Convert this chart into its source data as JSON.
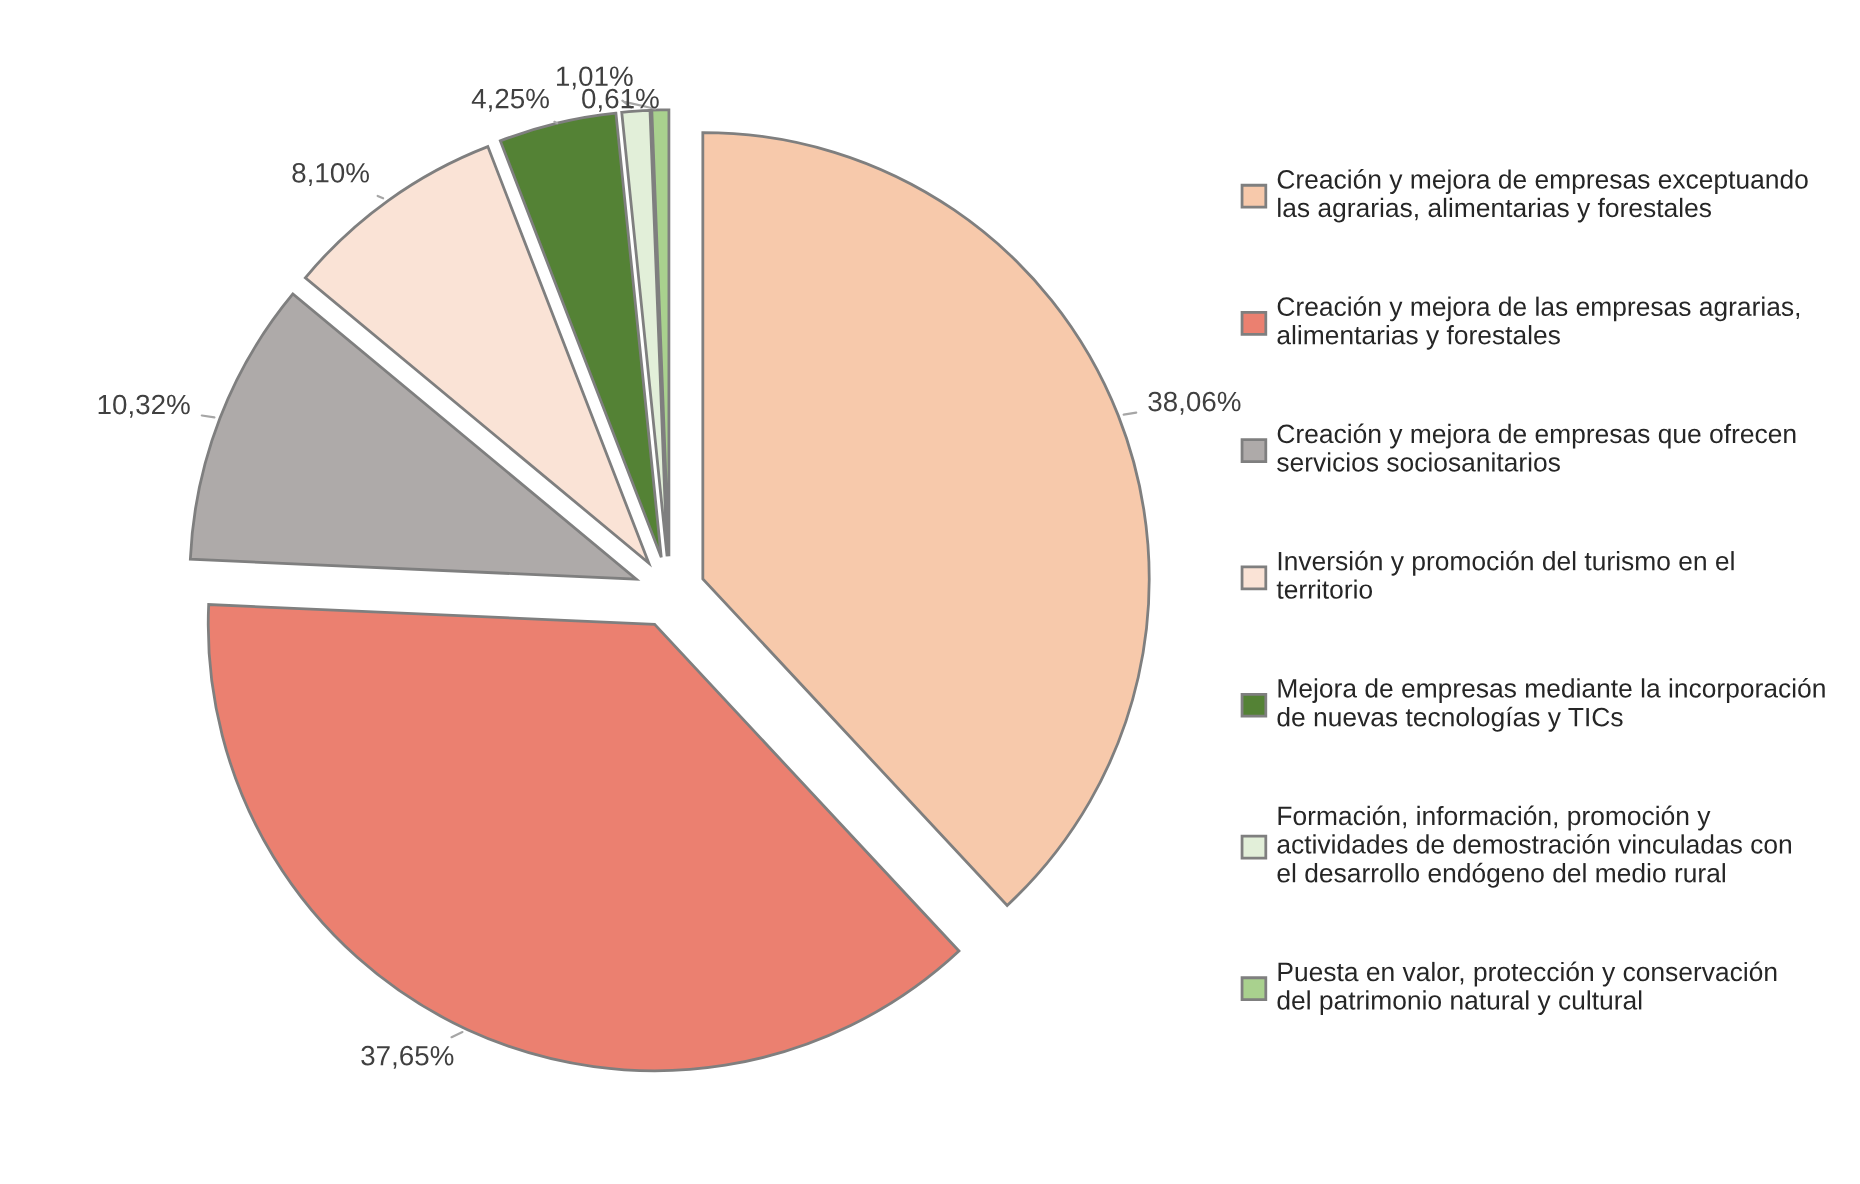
{
  "chart_data": {
    "type": "pie",
    "categories": [
      "Creación y mejora de empresas exceptuando las agrarias, alimentarias y forestales",
      "Creación y mejora de las empresas agrarias, alimentarias y forestales",
      "Creación y mejora de empresas que ofrecen servicios sociosanitarios",
      "Inversión y promoción del turismo en el territorio",
      "Mejora de empresas mediante la incorporación de nuevas tecnologías y TICs",
      "Formación, información, promoción y actividades de demostración vinculadas con el desarrollo endógeno del medio rural",
      "Puesta en valor, protección y conservación del patrimonio natural y cultural"
    ],
    "values": [
      38.06,
      37.65,
      10.32,
      8.1,
      4.25,
      1.01,
      0.61
    ],
    "value_labels": [
      "38,06%",
      "37,65%",
      "10,32%",
      "8,10%",
      "4,25%",
      "1,01%",
      "0,61%"
    ],
    "colors": [
      "#f7c9ab",
      "#eb8070",
      "#aeaaa9",
      "#fae3d6",
      "#548235",
      "#e2efd9",
      "#a9d18e"
    ],
    "legend": "right"
  }
}
